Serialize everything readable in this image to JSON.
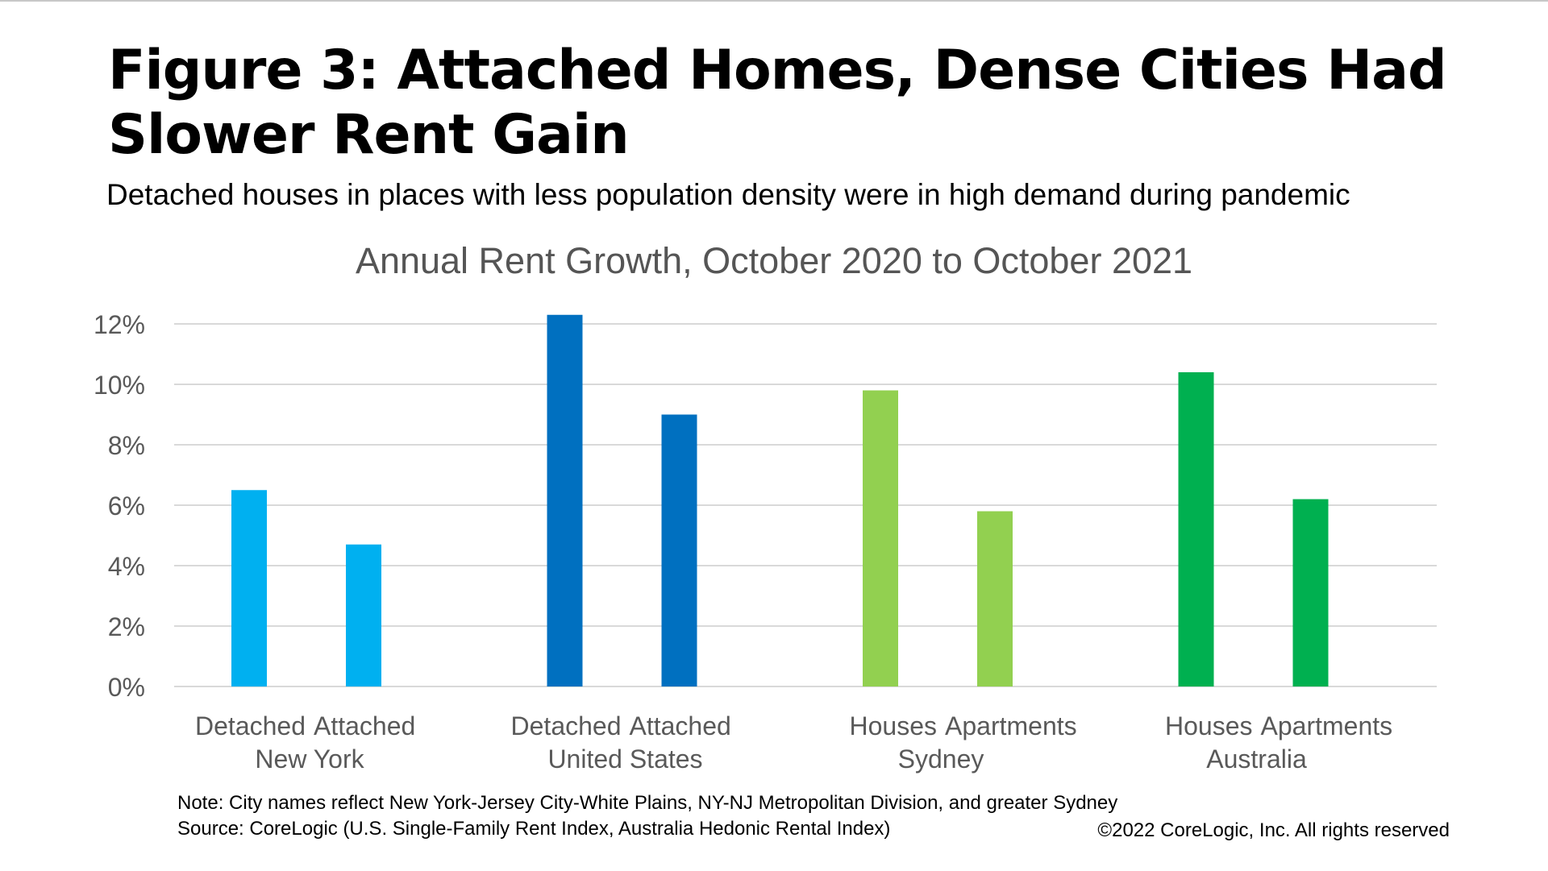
{
  "header": {
    "title": "Figure 3: Attached Homes, Dense Cities Had Slower Rent Gain",
    "subtitle": "Detached houses in places with less population density were in high demand during pandemic"
  },
  "chart_data": {
    "type": "bar",
    "title": "Annual Rent Growth, October 2020 to October 2021",
    "xlabel": "",
    "ylabel": "",
    "ylim": [
      0,
      12
    ],
    "y_ticks": [
      "0%",
      "2%",
      "4%",
      "6%",
      "8%",
      "10%",
      "12%"
    ],
    "grid": true,
    "legend": "none",
    "groups": [
      {
        "name": "New York",
        "color": "#00B0F0",
        "bars": [
          {
            "label": "Detached",
            "value": 6.5
          },
          {
            "label": "Attached",
            "value": 4.7
          }
        ]
      },
      {
        "name": "United States",
        "color": "#0070C0",
        "bars": [
          {
            "label": "Detached",
            "value": 12.3
          },
          {
            "label": "Attached",
            "value": 9.0
          }
        ]
      },
      {
        "name": "Sydney",
        "color": "#92D050",
        "bars": [
          {
            "label": "Houses",
            "value": 9.8
          },
          {
            "label": "Apartments",
            "value": 5.8
          }
        ]
      },
      {
        "name": "Australia",
        "color": "#00B050",
        "bars": [
          {
            "label": "Houses",
            "value": 10.4
          },
          {
            "label": "Apartments",
            "value": 6.2
          }
        ]
      }
    ]
  },
  "footer": {
    "note": "Note: City names reflect New York-Jersey City-White Plains, NY-NJ Metropolitan Division, and greater Sydney",
    "source": "Source: CoreLogic (U.S. Single-Family Rent Index, Australia Hedonic Rental Index)",
    "copyright": "©2022 CoreLogic, Inc.  All rights reserved"
  },
  "colors": {
    "gridline": "#D9D9D9",
    "axis_text": "#595959",
    "chart_title": "#555555"
  }
}
